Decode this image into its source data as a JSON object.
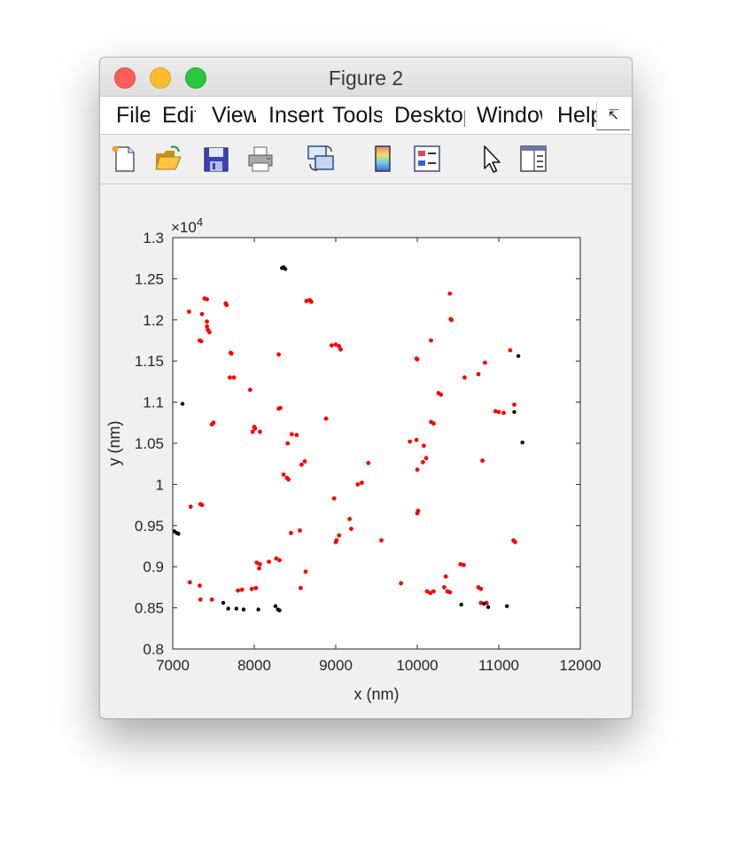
{
  "window": {
    "title": "Figure 2"
  },
  "menu": [
    "File",
    "Edit",
    "View",
    "Insert",
    "Tools",
    "Desktop",
    "Window",
    "Help"
  ],
  "menu_overflow": "↸",
  "toolbar": [
    "new-figure-icon",
    "open-file-icon",
    "save-icon",
    "print-icon",
    "link-plot-icon",
    "colorbar-icon",
    "legend-icon",
    "pointer-icon",
    "property-inspector-icon"
  ],
  "chart_data": {
    "type": "scatter",
    "title": "",
    "xlabel": "x (nm)",
    "ylabel": "y (nm)",
    "xlim": [
      7000,
      12000
    ],
    "ylim": [
      8000,
      13000
    ],
    "xticks": [
      "7000",
      "8000",
      "9000",
      "10000",
      "11000",
      "12000"
    ],
    "yticks": [
      "0.8",
      "0.85",
      "0.9",
      "0.95",
      "1",
      "1.05",
      "1.1",
      "1.15",
      "1.2",
      "1.25",
      "1.3"
    ],
    "y_exponent": "×10",
    "y_exponent_power": "4",
    "grid": false,
    "series": [
      {
        "color": "#ff0000",
        "points": [
          [
            7390,
            12260
          ],
          [
            7420,
            12250
          ],
          [
            7650,
            12200
          ],
          [
            7660,
            12180
          ],
          [
            7200,
            12100
          ],
          [
            7360,
            12070
          ],
          [
            7330,
            11750
          ],
          [
            7350,
            11740
          ],
          [
            7420,
            11920
          ],
          [
            7430,
            11880
          ],
          [
            7450,
            11850
          ],
          [
            7420,
            11980
          ],
          [
            7710,
            11600
          ],
          [
            7720,
            11590
          ],
          [
            7700,
            11300
          ],
          [
            7750,
            11300
          ],
          [
            7950,
            11150
          ],
          [
            7500,
            10750
          ],
          [
            7480,
            10730
          ],
          [
            8320,
            10930
          ],
          [
            8300,
            10920
          ],
          [
            8000,
            10700
          ],
          [
            8010,
            10680
          ],
          [
            8070,
            10640
          ],
          [
            7980,
            10640
          ],
          [
            8300,
            11580
          ],
          [
            8640,
            12230
          ],
          [
            8680,
            12240
          ],
          [
            8700,
            12220
          ],
          [
            8950,
            11690
          ],
          [
            9000,
            11700
          ],
          [
            9040,
            11680
          ],
          [
            9060,
            11640
          ],
          [
            8880,
            10800
          ],
          [
            8460,
            10610
          ],
          [
            8520,
            10600
          ],
          [
            8410,
            10500
          ],
          [
            8620,
            10280
          ],
          [
            8580,
            10240
          ],
          [
            8360,
            10120
          ],
          [
            8400,
            10080
          ],
          [
            8420,
            10060
          ],
          [
            9320,
            10020
          ],
          [
            9270,
            10000
          ],
          [
            9400,
            10260
          ],
          [
            7220,
            9730
          ],
          [
            7340,
            9760
          ],
          [
            7360,
            9750
          ],
          [
            8980,
            9830
          ],
          [
            8450,
            9410
          ],
          [
            8560,
            9440
          ],
          [
            9040,
            9380
          ],
          [
            9010,
            9320
          ],
          [
            9190,
            9460
          ],
          [
            9170,
            9580
          ],
          [
            9560,
            9320
          ],
          [
            9000,
            9300
          ],
          [
            8030,
            9050
          ],
          [
            8070,
            9030
          ],
          [
            8180,
            9060
          ],
          [
            8270,
            9100
          ],
          [
            8310,
            9080
          ],
          [
            8060,
            8980
          ],
          [
            8630,
            8940
          ],
          [
            7210,
            8810
          ],
          [
            7330,
            8770
          ],
          [
            7480,
            8600
          ],
          [
            7800,
            8710
          ],
          [
            7850,
            8720
          ],
          [
            7970,
            8730
          ],
          [
            8020,
            8740
          ],
          [
            8570,
            8740
          ],
          [
            7340,
            8600
          ],
          [
            9910,
            10520
          ],
          [
            10080,
            10470
          ],
          [
            10070,
            10270
          ],
          [
            10110,
            10320
          ],
          [
            9990,
            10540
          ],
          [
            10000,
            10180
          ],
          [
            10010,
            9680
          ],
          [
            10000,
            9650
          ],
          [
            9800,
            8800
          ],
          [
            10120,
            8700
          ],
          [
            10160,
            8680
          ],
          [
            10200,
            8700
          ],
          [
            10330,
            8750
          ],
          [
            10370,
            8700
          ],
          [
            10400,
            8690
          ],
          [
            10350,
            8880
          ],
          [
            10530,
            9030
          ],
          [
            10570,
            9020
          ],
          [
            10750,
            8750
          ],
          [
            10780,
            8730
          ],
          [
            10780,
            8560
          ],
          [
            10850,
            8560
          ],
          [
            10170,
            10760
          ],
          [
            10200,
            10740
          ],
          [
            10260,
            11110
          ],
          [
            10290,
            11090
          ],
          [
            10400,
            12320
          ],
          [
            10410,
            12010
          ],
          [
            10420,
            12000
          ],
          [
            10170,
            11750
          ],
          [
            9990,
            11530
          ],
          [
            10000,
            11520
          ],
          [
            10580,
            11300
          ],
          [
            10750,
            11340
          ],
          [
            10830,
            11480
          ],
          [
            10800,
            10290
          ],
          [
            10960,
            10890
          ],
          [
            11000,
            10880
          ],
          [
            11060,
            10870
          ],
          [
            11140,
            11630
          ],
          [
            11190,
            10970
          ],
          [
            11180,
            9320
          ],
          [
            11200,
            9300
          ]
        ]
      },
      {
        "color": "#000000",
        "points": [
          [
            8340,
            12630
          ],
          [
            8360,
            12640
          ],
          [
            8380,
            12620
          ],
          [
            7120,
            10980
          ],
          [
            7020,
            9430
          ],
          [
            7050,
            9410
          ],
          [
            7070,
            9400
          ],
          [
            7620,
            8560
          ],
          [
            7680,
            8490
          ],
          [
            7780,
            8490
          ],
          [
            7870,
            8480
          ],
          [
            8050,
            8480
          ],
          [
            8290,
            8480
          ],
          [
            8260,
            8520
          ],
          [
            8310,
            8470
          ],
          [
            10540,
            8540
          ],
          [
            10820,
            8550
          ],
          [
            10870,
            8510
          ],
          [
            11100,
            8520
          ],
          [
            11240,
            11560
          ],
          [
            11190,
            10880
          ],
          [
            11290,
            10510
          ]
        ]
      }
    ]
  }
}
